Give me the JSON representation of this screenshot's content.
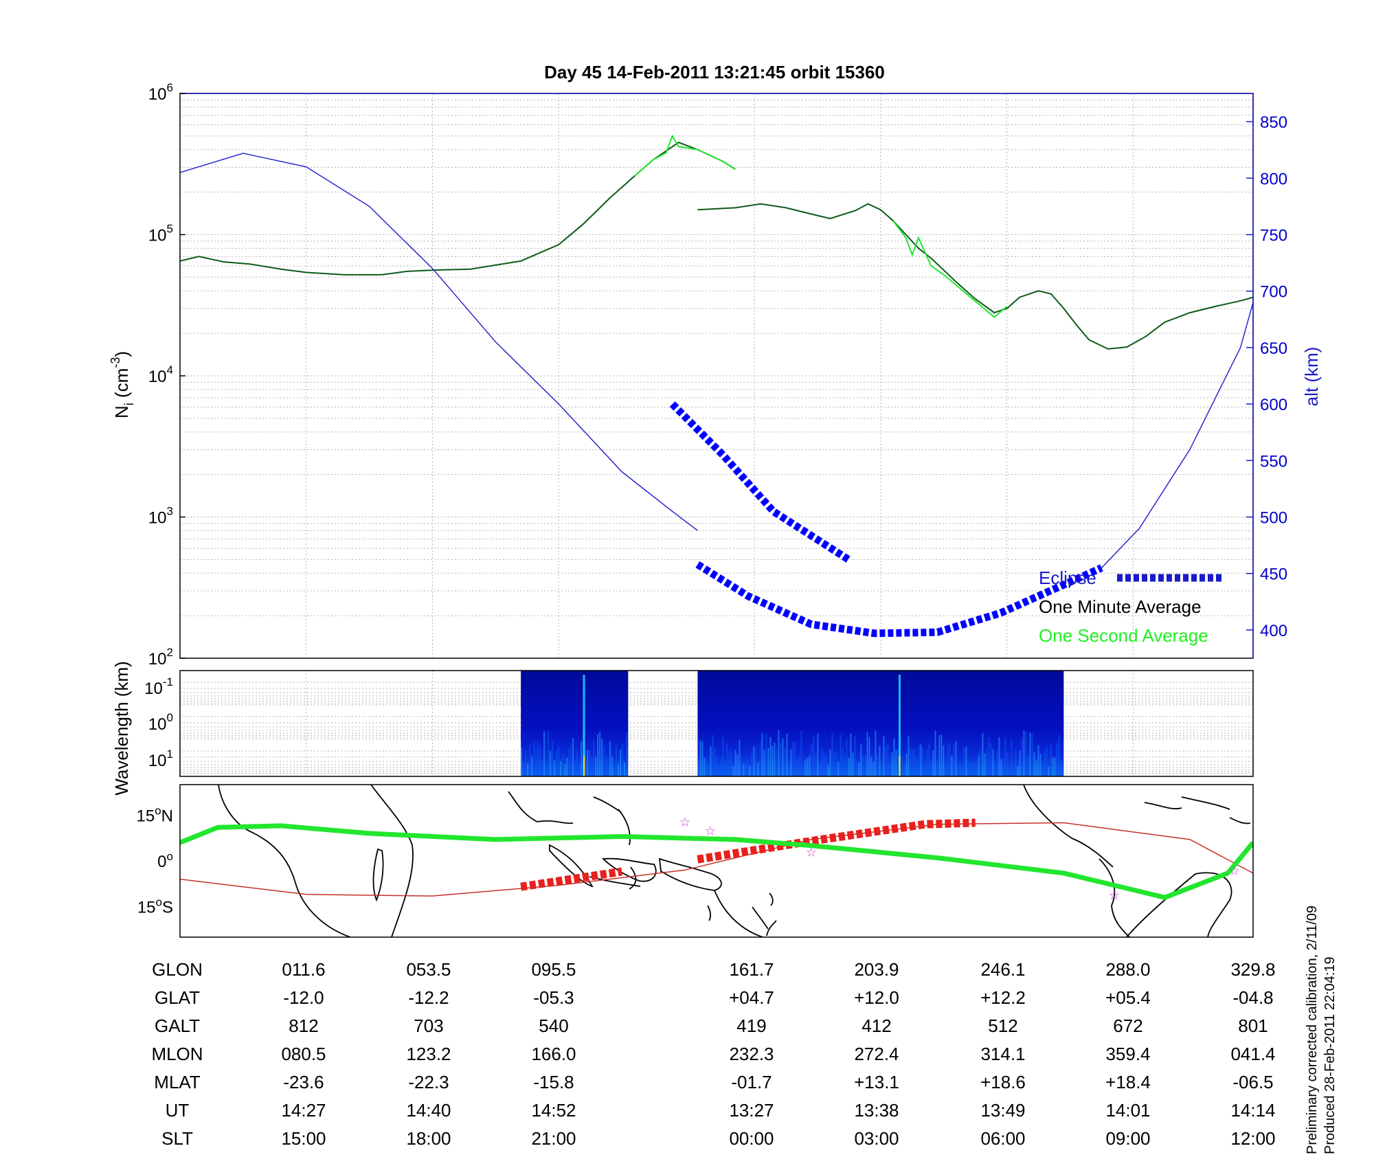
{
  "chart_data": [
    {
      "type": "line",
      "title": "Day 45  14-Feb-2011 13:21:45   orbit 15360",
      "ylabel": "N",
      "ylabel_sub": "i",
      "ylabel_unit": "(cm",
      "ylabel_exp": "-3",
      "ylabel_close": ")",
      "yscale": "log",
      "ylim": [
        100,
        1000000
      ],
      "y_ticks": [
        {
          "base": "10",
          "exp": "2",
          "value": 100
        },
        {
          "base": "10",
          "exp": "3",
          "value": 1000
        },
        {
          "base": "10",
          "exp": "4",
          "value": 10000
        },
        {
          "base": "10",
          "exp": "5",
          "value": 100000
        },
        {
          "base": "10",
          "exp": "6",
          "value": 1000000
        }
      ],
      "y2label": "alt (km)",
      "y2lim": [
        375,
        875
      ],
      "y2_ticks": [
        "400",
        "450",
        "500",
        "550",
        "600",
        "650",
        "700",
        "750",
        "800",
        "850"
      ],
      "grid": true,
      "legend_position": "bottom-right",
      "x_index_range": [
        0,
        8.5
      ],
      "series": [
        {
          "name": "One Minute Average",
          "color": "#0b5a18",
          "axis": "left",
          "segments": [
            [
              [
                0,
                65000
              ],
              [
                0.15,
                70000
              ],
              [
                0.35,
                64000
              ],
              [
                0.55,
                62000
              ],
              [
                0.8,
                57000
              ],
              [
                1,
                54000
              ],
              [
                1.3,
                52000
              ],
              [
                1.6,
                52000
              ],
              [
                1.8,
                55000
              ],
              [
                2.0,
                56000
              ],
              [
                2.3,
                57000
              ],
              [
                2.7,
                65000
              ],
              [
                3.0,
                85000
              ],
              [
                3.2,
                120000
              ],
              [
                3.4,
                180000
              ],
              [
                3.6,
                260000
              ],
              [
                3.75,
                340000
              ],
              [
                3.95,
                450000
              ],
              [
                4.1,
                400000
              ],
              [
                4.3,
                330000
              ],
              [
                4.4,
                290000
              ]
            ],
            [
              [
                4.1,
                150000
              ],
              [
                4.4,
                155000
              ],
              [
                4.6,
                165000
              ],
              [
                4.8,
                155000
              ],
              [
                5.0,
                140000
              ],
              [
                5.15,
                130000
              ],
              [
                5.35,
                148000
              ],
              [
                5.45,
                165000
              ],
              [
                5.55,
                150000
              ],
              [
                5.65,
                125000
              ],
              [
                5.75,
                100000
              ],
              [
                5.85,
                80000
              ],
              [
                5.95,
                68000
              ],
              [
                6.05,
                56000
              ],
              [
                6.15,
                46000
              ],
              [
                6.3,
                35000
              ],
              [
                6.45,
                28000
              ],
              [
                6.55,
                30000
              ],
              [
                6.65,
                36000
              ],
              [
                6.8,
                40000
              ],
              [
                6.9,
                38000
              ],
              [
                7.0,
                30000
              ],
              [
                7.1,
                23000
              ],
              [
                7.2,
                18000
              ],
              [
                7.35,
                15500
              ],
              [
                7.5,
                16000
              ],
              [
                7.65,
                19000
              ],
              [
                7.8,
                24000
              ],
              [
                8.0,
                28000
              ],
              [
                8.2,
                31000
              ],
              [
                8.4,
                34000
              ],
              [
                8.5,
                36000
              ]
            ]
          ]
        },
        {
          "name": "One Second Average",
          "color": "#22e62e",
          "axis": "left",
          "segments": [
            [
              [
                3.6,
                260000
              ],
              [
                3.75,
                340000
              ],
              [
                3.85,
                380000
              ],
              [
                3.9,
                500000
              ],
              [
                3.95,
                420000
              ],
              [
                4.1,
                400000
              ],
              [
                4.3,
                330000
              ],
              [
                4.4,
                290000
              ]
            ],
            [
              [
                5.65,
                125000
              ],
              [
                5.75,
                95000
              ],
              [
                5.8,
                72000
              ],
              [
                5.85,
                95000
              ],
              [
                5.95,
                60000
              ],
              [
                6.05,
                52000
              ],
              [
                6.45,
                26000
              ],
              [
                6.55,
                31000
              ]
            ]
          ]
        },
        {
          "name": "altitude",
          "color": "#1a1acc",
          "axis": "right",
          "segments": [
            [
              [
                0,
                805
              ],
              [
                0.5,
                822
              ],
              [
                1.0,
                810
              ],
              [
                1.5,
                775
              ],
              [
                2.0,
                720
              ],
              [
                2.5,
                655
              ],
              [
                3.0,
                600
              ],
              [
                3.5,
                540
              ],
              [
                3.9,
                505
              ],
              [
                4.1,
                488
              ]
            ]
          ]
        }
      ],
      "eclipse": {
        "name": "Eclipse",
        "color": "#0000ff",
        "segments": [
          [
            [
              3.9,
              600
            ],
            [
              4.3,
              555
            ],
            [
              4.7,
              505
            ],
            [
              5.3,
              462
            ]
          ],
          [
            [
              4.1,
              458
            ],
            [
              4.5,
              430
            ],
            [
              5.0,
              405
            ],
            [
              5.5,
              397
            ],
            [
              6.0,
              398
            ],
            [
              6.5,
              415
            ],
            [
              7.0,
              440
            ],
            [
              7.3,
              455
            ]
          ]
        ]
      },
      "legend": [
        {
          "label": "Eclipse",
          "color": "#1a1acc"
        },
        {
          "label": "One Minute Average",
          "color": "#000000"
        },
        {
          "label": "One Second Average",
          "color": "#22ee22"
        }
      ]
    },
    {
      "type": "heatmap",
      "ylabel": "Wavelength (km)",
      "y_ticks": [
        {
          "base": "10",
          "exp": "-1"
        },
        {
          "base": "10",
          "exp": "0"
        },
        {
          "base": "10",
          "exp": "1"
        }
      ],
      "colormap": [
        "#00008f",
        "#0000ff",
        "#00ffff",
        "#ffff00",
        "#ff0000"
      ],
      "segments": [
        {
          "x_start": 2.7,
          "x_end": 3.55,
          "peak_at": 3.2
        },
        {
          "x_start": 4.1,
          "x_end": 7.0,
          "peak_at": 5.7
        }
      ]
    },
    {
      "type": "map",
      "y_ticks": [
        {
          "value": "15",
          "dir": "N"
        },
        {
          "value": "0",
          "dir": ""
        },
        {
          "value": "15",
          "dir": "S"
        }
      ],
      "ylim": [
        -25,
        25
      ],
      "track": {
        "color": "#c8302b",
        "points": [
          [
            0,
            -6
          ],
          [
            1,
            -11
          ],
          [
            2,
            -11.5
          ],
          [
            3,
            -8
          ],
          [
            4,
            -3
          ],
          [
            5,
            7
          ],
          [
            6,
            12
          ],
          [
            7,
            12.5
          ],
          [
            8,
            7
          ],
          [
            8.5,
            -4
          ]
        ]
      },
      "track_eclipse": {
        "color": "#e8201e",
        "segments": [
          [
            [
              2.7,
              -8.5
            ],
            [
              3.5,
              -3.5
            ]
          ],
          [
            [
              4.1,
              0.5
            ],
            [
              5,
              6.5
            ],
            [
              5.9,
              12
            ],
            [
              6.3,
              12.5
            ]
          ]
        ]
      },
      "magnetic_equator": {
        "color": "#22e62e",
        "points": [
          [
            0,
            6
          ],
          [
            0.3,
            11
          ],
          [
            0.8,
            11.5
          ],
          [
            1.5,
            9
          ],
          [
            2.5,
            7
          ],
          [
            3.5,
            8
          ],
          [
            4.4,
            7
          ],
          [
            5.0,
            5
          ],
          [
            6.0,
            1
          ],
          [
            7.0,
            -4
          ],
          [
            7.8,
            -12
          ],
          [
            8.3,
            -4
          ],
          [
            8.5,
            6
          ]
        ]
      },
      "stars": [
        [
          4.0,
          13
        ],
        [
          4.2,
          10
        ],
        [
          5.0,
          3
        ],
        [
          7.4,
          -11
        ],
        [
          8.35,
          -3
        ]
      ]
    }
  ],
  "table": {
    "rows": [
      {
        "label": "GLON",
        "values": [
          "011.6",
          "053.5",
          "095.5",
          "161.7",
          "203.9",
          "246.1",
          "288.0",
          "329.8"
        ]
      },
      {
        "label": "GLAT",
        "values": [
          "-12.0",
          "-12.2",
          "-05.3",
          "+04.7",
          "+12.0",
          "+12.2",
          "+05.4",
          "-04.8"
        ]
      },
      {
        "label": "GALT",
        "values": [
          "812",
          "703",
          "540",
          "419",
          "412",
          "512",
          "672",
          "801"
        ]
      },
      {
        "label": "MLON",
        "values": [
          "080.5",
          "123.2",
          "166.0",
          "232.3",
          "272.4",
          "314.1",
          "359.4",
          "041.4"
        ]
      },
      {
        "label": "MLAT",
        "values": [
          "-23.6",
          "-22.3",
          "-15.8",
          "-01.7",
          "+13.1",
          "+18.6",
          "+18.4",
          "-06.5"
        ]
      },
      {
        "label": "UT",
        "values": [
          "14:27",
          "14:40",
          "14:52",
          "13:27",
          "13:38",
          "13:49",
          "14:01",
          "14:14"
        ]
      },
      {
        "label": "SLT",
        "values": [
          "15:00",
          "18:00",
          "21:00",
          "00:00",
          "03:00",
          "06:00",
          "09:00",
          "12:00"
        ]
      }
    ]
  },
  "notes": {
    "line1": "Preliminary corrected calibration, 2/11/09",
    "line2": "Produced 28-Feb-2011 22:04:19"
  }
}
